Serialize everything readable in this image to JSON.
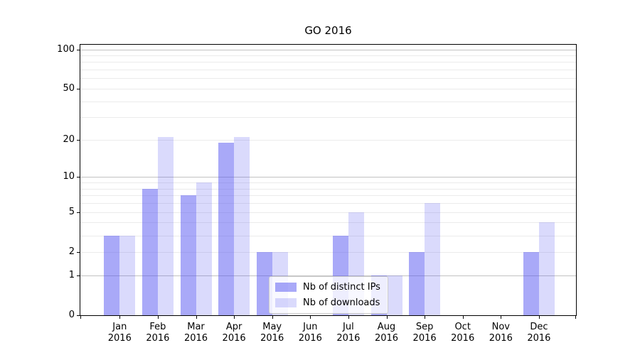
{
  "chart_data": {
    "type": "bar",
    "title": "GO 2016",
    "categories": [
      "Jan",
      "Feb",
      "Mar",
      "Apr",
      "May",
      "Jun",
      "Jul",
      "Aug",
      "Sep",
      "Oct",
      "Nov",
      "Dec"
    ],
    "category_year": "2016",
    "series": [
      {
        "name": "Nb of distinct IPs",
        "color": "rgba(80,80,240,0.49)",
        "values": [
          3,
          8,
          7,
          19,
          2,
          0,
          3,
          1,
          2,
          0,
          0,
          2
        ]
      },
      {
        "name": "Nb of downloads",
        "color": "rgba(80,80,240,0.21)",
        "values": [
          3,
          21,
          9,
          21,
          2,
          0,
          5,
          1,
          6,
          0,
          0,
          4
        ]
      }
    ],
    "xlabel": "",
    "ylabel": "",
    "yscale": "log1p",
    "ylim": [
      0,
      110
    ],
    "yticks": [
      0,
      1,
      2,
      5,
      10,
      20,
      50,
      100
    ],
    "major_gridlines": [
      1,
      10,
      100
    ],
    "minor_gridlines": [
      2,
      3,
      4,
      5,
      6,
      7,
      8,
      9,
      20,
      30,
      40,
      50,
      60,
      70,
      80,
      90
    ],
    "grid": true,
    "legend_position": "lower center"
  },
  "colors": {
    "background": "#ffffff",
    "axis": "#000000",
    "major_grid": "#c2c2c2",
    "minor_grid": "#ebebeb",
    "legend_border": "#cccccc"
  }
}
